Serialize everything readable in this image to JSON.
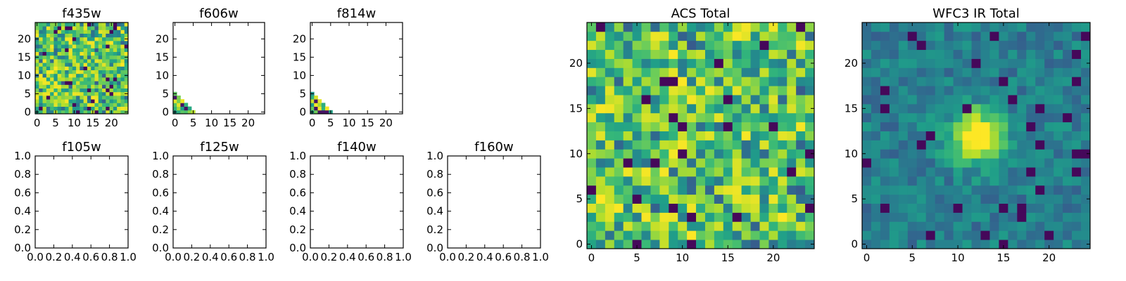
{
  "chart_data": [
    {
      "id": "f435w",
      "type": "heatmap",
      "title": "f435w",
      "xticks": [
        "0",
        "5",
        "10",
        "15",
        "20"
      ],
      "yticks": [
        "0",
        "5",
        "10",
        "15",
        "20"
      ],
      "xlim": [
        -0.5,
        24.5
      ],
      "ylim": [
        -0.5,
        24.5
      ],
      "fill": "full",
      "colormap": "viridis",
      "seed": 11
    },
    {
      "id": "f606w",
      "type": "heatmap",
      "title": "f606w",
      "xticks": [
        "0",
        "5",
        "10",
        "15",
        "20"
      ],
      "yticks": [
        "0",
        "5",
        "10",
        "15",
        "20"
      ],
      "xlim": [
        -0.5,
        24.5
      ],
      "ylim": [
        -0.5,
        24.5
      ],
      "fill": "corner",
      "colormap": "viridis",
      "seed": 23
    },
    {
      "id": "f814w",
      "type": "heatmap",
      "title": "f814w",
      "xticks": [
        "0",
        "5",
        "10",
        "15",
        "20"
      ],
      "yticks": [
        "0",
        "5",
        "10",
        "15",
        "20"
      ],
      "xlim": [
        -0.5,
        24.5
      ],
      "ylim": [
        -0.5,
        24.5
      ],
      "fill": "corner",
      "colormap": "viridis",
      "seed": 37
    },
    {
      "id": "f105w",
      "type": "empty",
      "title": "f105w",
      "xticks": [
        "0.0",
        "0.2",
        "0.4",
        "0.6",
        "0.8",
        "1.0"
      ],
      "yticks": [
        "0.0",
        "0.2",
        "0.4",
        "0.6",
        "0.8",
        "1.0"
      ],
      "xlim": [
        0,
        1
      ],
      "ylim": [
        0,
        1
      ]
    },
    {
      "id": "f125w",
      "type": "empty",
      "title": "f125w",
      "xticks": [
        "0.0",
        "0.2",
        "0.4",
        "0.6",
        "0.8",
        "1.0"
      ],
      "yticks": [
        "0.0",
        "0.2",
        "0.4",
        "0.6",
        "0.8",
        "1.0"
      ],
      "xlim": [
        0,
        1
      ],
      "ylim": [
        0,
        1
      ]
    },
    {
      "id": "f140w",
      "type": "empty",
      "title": "f140w",
      "xticks": [
        "0.0",
        "0.2",
        "0.4",
        "0.6",
        "0.8",
        "1.0"
      ],
      "yticks": [
        "0.0",
        "0.2",
        "0.4",
        "0.6",
        "0.8",
        "1.0"
      ],
      "xlim": [
        0,
        1
      ],
      "ylim": [
        0,
        1
      ]
    },
    {
      "id": "f160w",
      "type": "empty",
      "title": "f160w",
      "xticks": [
        "0.0",
        "0.2",
        "0.4",
        "0.6",
        "0.8",
        "1.0"
      ],
      "yticks": [
        "0.0",
        "0.2",
        "0.4",
        "0.6",
        "0.8",
        "1.0"
      ],
      "xlim": [
        0,
        1
      ],
      "ylim": [
        0,
        1
      ]
    },
    {
      "id": "acs_total",
      "type": "heatmap",
      "title": "ACS Total",
      "xticks": [
        "0",
        "5",
        "10",
        "15",
        "20"
      ],
      "yticks": [
        "0",
        "5",
        "10",
        "15",
        "20"
      ],
      "xlim": [
        -0.5,
        24.5
      ],
      "ylim": [
        -0.5,
        24.5
      ],
      "fill": "full",
      "colormap": "viridis",
      "seed": 53
    },
    {
      "id": "wfc3_ir_total",
      "type": "heatmap",
      "title": "WFC3 IR Total",
      "xticks": [
        "0",
        "5",
        "10",
        "15",
        "20"
      ],
      "yticks": [
        "0",
        "5",
        "10",
        "15",
        "20"
      ],
      "xlim": [
        -0.5,
        24.5
      ],
      "ylim": [
        -0.5,
        24.5
      ],
      "fill": "blob",
      "colormap": "viridis",
      "seed": 71,
      "source_center": [
        12,
        12
      ]
    }
  ]
}
